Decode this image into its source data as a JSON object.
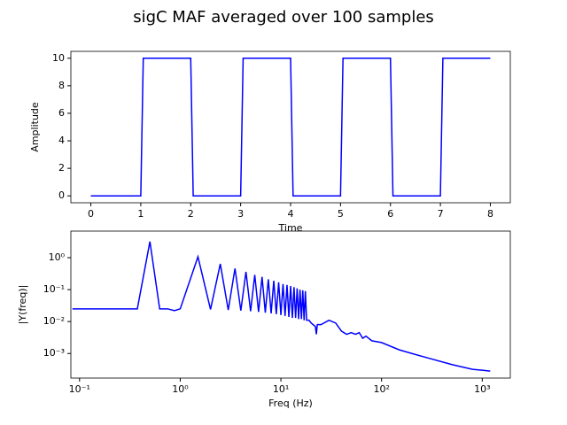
{
  "title": "sigC MAF averaged over 100 samples",
  "chart_data": [
    {
      "type": "line",
      "xlabel": "Time",
      "ylabel": "Amplitude",
      "x": [
        0,
        1,
        1.05,
        2,
        2.05,
        3,
        3.05,
        4,
        4.05,
        5,
        5.05,
        6,
        6.05,
        7,
        7.05,
        8
      ],
      "series": [
        {
          "name": "sigC",
          "color": "#0000ff",
          "values": [
            0,
            0,
            10,
            10,
            0,
            0,
            10,
            10,
            0,
            0,
            10,
            10,
            0,
            0,
            10,
            10
          ]
        }
      ],
      "xlim": [
        -0.4,
        8.4
      ],
      "xticks": [
        0,
        1,
        2,
        3,
        4,
        5,
        6,
        7,
        8
      ],
      "ylim": [
        -0.5,
        10.5
      ],
      "yticks": [
        0,
        2,
        4,
        6,
        8,
        10
      ]
    },
    {
      "type": "line",
      "xlabel": "Freq (Hz)",
      "ylabel": "|Y(freq)|",
      "xscale": "log",
      "yscale": "log",
      "x": [
        0.085,
        0.375,
        0.5,
        0.625,
        0.75,
        0.875,
        1,
        1.5,
        2,
        2.5,
        3,
        3.5,
        4,
        4.5,
        5,
        5.5,
        6,
        6.5,
        7,
        7.5,
        8,
        8.5,
        9,
        9.5,
        10,
        10.5,
        11,
        11.5,
        12,
        12.5,
        13,
        13.5,
        14,
        14.5,
        15,
        15.5,
        16,
        16.5,
        17,
        17.5,
        18,
        19,
        20,
        22,
        22.5,
        23,
        25,
        30,
        35,
        40,
        45,
        50,
        55,
        60,
        65,
        70,
        80,
        100,
        150,
        200,
        300,
        500,
        800,
        1000,
        1200
      ],
      "series": [
        {
          "name": "|Y(freq)|",
          "color": "#0000ff",
          "values": [
            0.025,
            0.025,
            3.2,
            0.025,
            0.025,
            0.022,
            0.025,
            1.07,
            0.024,
            0.64,
            0.023,
            0.46,
            0.022,
            0.36,
            0.021,
            0.29,
            0.02,
            0.25,
            0.019,
            0.21,
            0.018,
            0.19,
            0.017,
            0.17,
            0.016,
            0.15,
            0.015,
            0.14,
            0.014,
            0.13,
            0.013,
            0.12,
            0.013,
            0.11,
            0.012,
            0.1,
            0.012,
            0.095,
            0.011,
            0.09,
            0.011,
            0.011,
            0.009,
            0.007,
            0.004,
            0.008,
            0.008,
            0.011,
            0.009,
            0.005,
            0.004,
            0.0045,
            0.004,
            0.0045,
            0.003,
            0.0035,
            0.0025,
            0.0022,
            0.0013,
            0.001,
            0.0007,
            0.00045,
            0.00032,
            0.0003,
            0.00028
          ]
        }
      ],
      "xlim": [
        0.082,
        1900
      ],
      "xticks": [
        {
          "value": 0.1,
          "label": "10⁻¹"
        },
        {
          "value": 1,
          "label": "10⁰"
        },
        {
          "value": 10,
          "label": "10¹"
        },
        {
          "value": 100,
          "label": "10²"
        },
        {
          "value": 1000,
          "label": "10³"
        }
      ],
      "ylim": [
        0.00017,
        6.8
      ],
      "yticks": [
        {
          "value": 0.001,
          "label": "10⁻³"
        },
        {
          "value": 0.01,
          "label": "10⁻²"
        },
        {
          "value": 0.1,
          "label": "10⁻¹"
        },
        {
          "value": 1,
          "label": "10⁰"
        }
      ]
    }
  ]
}
